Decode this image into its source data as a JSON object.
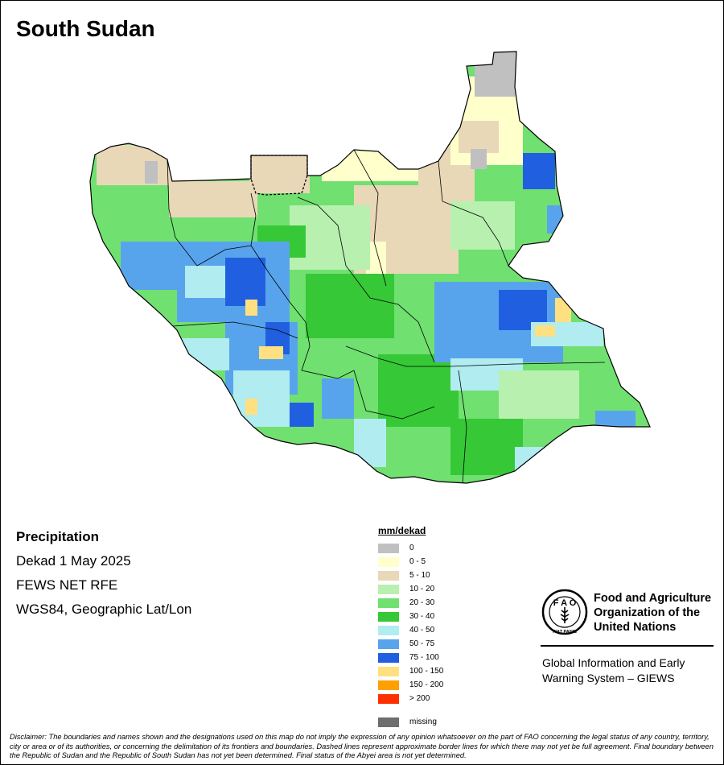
{
  "map": {
    "title": "South Sudan"
  },
  "info": {
    "variable": "Precipitation",
    "period": "Dekad 1 May 2025",
    "source": "FEWS NET RFE",
    "projection": "WGS84, Geographic Lat/Lon"
  },
  "legend": {
    "title": "mm/dekad",
    "classes": [
      {
        "label": "0",
        "color": "#c0c0c0"
      },
      {
        "label": "0 - 5",
        "color": "#ffffcc"
      },
      {
        "label": "5 - 10",
        "color": "#e8d8b8"
      },
      {
        "label": "10 - 20",
        "color": "#b8f0b0"
      },
      {
        "label": "20 - 30",
        "color": "#70e070"
      },
      {
        "label": "30 - 40",
        "color": "#36c836"
      },
      {
        "label": "40 - 50",
        "color": "#b0ecf0"
      },
      {
        "label": "50 - 75",
        "color": "#58a4ec"
      },
      {
        "label": "75 - 100",
        "color": "#2060e0"
      },
      {
        "label": "100 - 150",
        "color": "#ffe080"
      },
      {
        "label": "150 - 200",
        "color": "#ffa000"
      },
      {
        "label": "> 200",
        "color": "#ff3000"
      }
    ],
    "missing": {
      "label": "missing",
      "color": "#6e6e6e"
    }
  },
  "fao": {
    "name_line1": "Food and Agriculture",
    "name_line2": "Organization of the",
    "name_line3": "United Nations",
    "logo_text": "FIAT PANIS"
  },
  "giews": {
    "line1": "Global Information and Early",
    "line2": "Warning System – GIEWS"
  },
  "disclaimer": "Disclaimer: The boundaries and names shown and the designations used on this map do not imply the expression of any opinion whatsoever on the part of FAO concerning the legal status of any country, territory, city or area or of its authorities, or concerning the delimitation of its frontiers and boundaries. Dashed lines represent approximate border lines for which there may not yet be full agreement.  Final boundary between the Republic of Sudan and the Republic of South Sudan has not yet been determined. Final status of the Abyei area is not yet determined."
}
